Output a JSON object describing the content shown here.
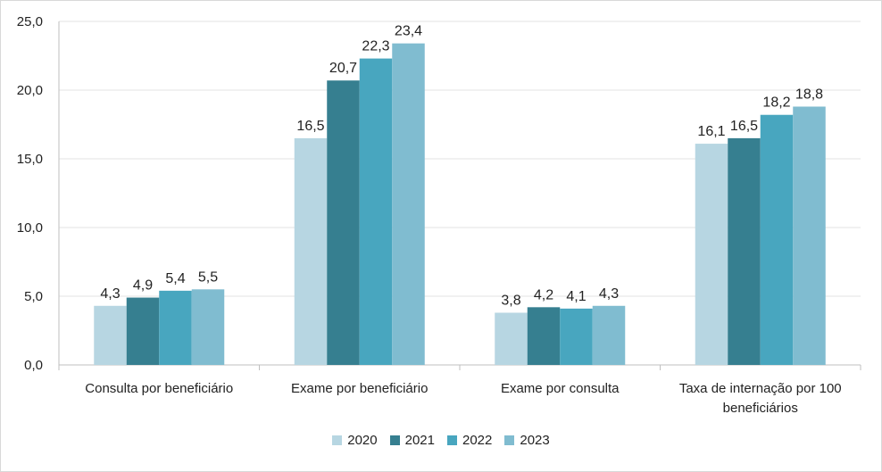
{
  "chart_data": {
    "type": "bar",
    "categories": [
      [
        "Consulta por beneficiário"
      ],
      [
        "Exame por beneficiário"
      ],
      [
        "Exame por consulta"
      ],
      [
        "Taxa de internação por 100",
        "beneficiários"
      ]
    ],
    "series": [
      {
        "name": "2020",
        "color": "#b7d6e2",
        "values": [
          4.3,
          16.5,
          3.8,
          16.1
        ],
        "labels": [
          "4,3",
          "16,5",
          "3,8",
          "16,1"
        ]
      },
      {
        "name": "2021",
        "color": "#367f90",
        "values": [
          4.9,
          20.7,
          4.2,
          16.5
        ],
        "labels": [
          "4,9",
          "20,7",
          "4,2",
          "16,5"
        ]
      },
      {
        "name": "2022",
        "color": "#48a6bf",
        "values": [
          5.4,
          22.3,
          4.1,
          18.2
        ],
        "labels": [
          "5,4",
          "22,3",
          "4,1",
          "18,2"
        ]
      },
      {
        "name": "2023",
        "color": "#80bcd0",
        "values": [
          5.5,
          23.4,
          4.3,
          18.8
        ],
        "labels": [
          "5,5",
          "23,4",
          "4,3",
          "18,8"
        ]
      }
    ],
    "yticks": [
      "0,0",
      "5,0",
      "10,0",
      "15,0",
      "20,0",
      "25,0"
    ],
    "ylim": [
      0,
      25
    ],
    "grid": true,
    "legend": "bottom",
    "title": "",
    "xlabel": "",
    "ylabel": ""
  }
}
